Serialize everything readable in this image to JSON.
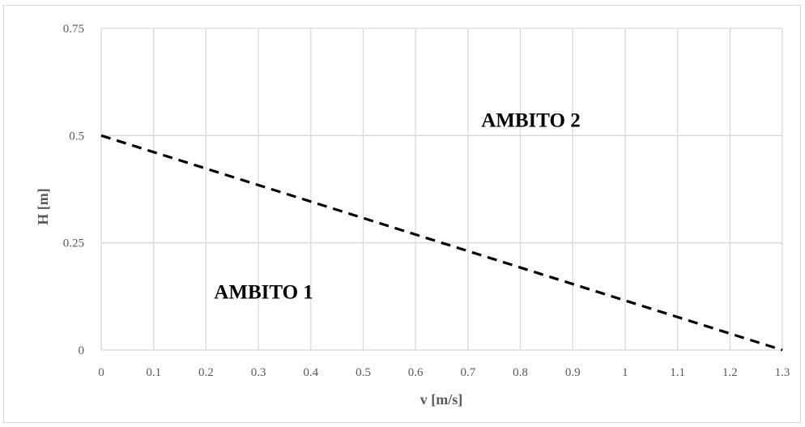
{
  "chart_data": {
    "type": "line",
    "title": "",
    "xlabel": "v [m/s]",
    "ylabel": "H [m]",
    "xlim": [
      0,
      1.3
    ],
    "ylim": [
      0,
      0.75
    ],
    "x_ticks": [
      "0",
      "0.1",
      "0.2",
      "0.3",
      "0.4",
      "0.5",
      "0.6",
      "0.7",
      "0.8",
      "0.9",
      "1",
      "1.1",
      "1.2",
      "1.3"
    ],
    "y_ticks": [
      "0",
      "0.25",
      "0.5",
      "0.75"
    ],
    "grid": true,
    "series": [
      {
        "x": [
          0,
          1.3
        ],
        "y": [
          0.5,
          0
        ],
        "style": "dashed",
        "color": "#000000"
      }
    ],
    "annotations": [
      {
        "text": "AMBITO 1",
        "x": 0.31,
        "y": 0.12
      },
      {
        "text": "AMBITO 2",
        "x": 0.82,
        "y": 0.52
      }
    ],
    "colors": {
      "grid": "#d9d9d9",
      "text": "#595959",
      "line": "#000000"
    }
  }
}
